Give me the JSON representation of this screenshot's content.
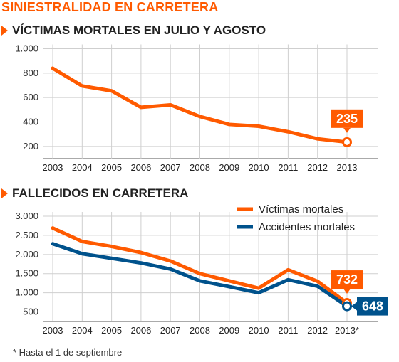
{
  "title": "SINIESTRALIDAD EN CARRETERA",
  "footnote": "* Hasta el 1 de septiembre",
  "colors": {
    "orange": "#ff5a00",
    "blue": "#00528c",
    "grid": "#cfcfcf"
  },
  "chart_data": [
    {
      "type": "line",
      "title": "VÍCTIMAS MORTALES EN JULIO Y AGOSTO",
      "categories": [
        "2003",
        "2004",
        "2005",
        "2006",
        "2007",
        "2008",
        "2009",
        "2010",
        "2011",
        "2012",
        "2013"
      ],
      "ylim": [
        100,
        1000
      ],
      "yticks": [
        200,
        400,
        600,
        800,
        1000
      ],
      "ytick_labels": [
        "200",
        "400",
        "600",
        "800",
        "1.000"
      ],
      "grid": "horizontal+vertical",
      "series": [
        {
          "values": [
            840,
            695,
            655,
            520,
            540,
            445,
            380,
            365,
            320,
            262,
            235
          ],
          "color": "#ff5a00"
        }
      ],
      "annotations": [
        {
          "series": 0,
          "index": 10,
          "text": "235",
          "color": "#ff5a00"
        }
      ]
    },
    {
      "type": "line",
      "title": "FALLECIDOS EN CARRETERA",
      "categories": [
        "2003",
        "2004",
        "2005",
        "2006",
        "2007",
        "2008",
        "2009",
        "2010",
        "2011",
        "2012",
        "2013*"
      ],
      "ylim": [
        250,
        3000
      ],
      "yticks": [
        500,
        1000,
        1500,
        2000,
        2500,
        3000
      ],
      "ytick_labels": [
        "500",
        "1.000",
        "1.500",
        "2.000",
        "2.500",
        "3.000"
      ],
      "legend": "top-right",
      "series": [
        {
          "name": "Víctimas mortales",
          "values": [
            2690,
            2340,
            2210,
            2050,
            1830,
            1500,
            1310,
            1120,
            1600,
            1300,
            732
          ],
          "color": "#ff5a00"
        },
        {
          "name": "Accidentes mortales",
          "values": [
            2280,
            2020,
            1900,
            1780,
            1620,
            1310,
            1160,
            1000,
            1340,
            1170,
            648
          ],
          "color": "#00528c"
        }
      ],
      "annotations": [
        {
          "series": 0,
          "index": 10,
          "text": "732",
          "color": "#ff5a00"
        },
        {
          "series": 1,
          "index": 10,
          "text": "648",
          "color": "#00528c"
        }
      ]
    }
  ]
}
